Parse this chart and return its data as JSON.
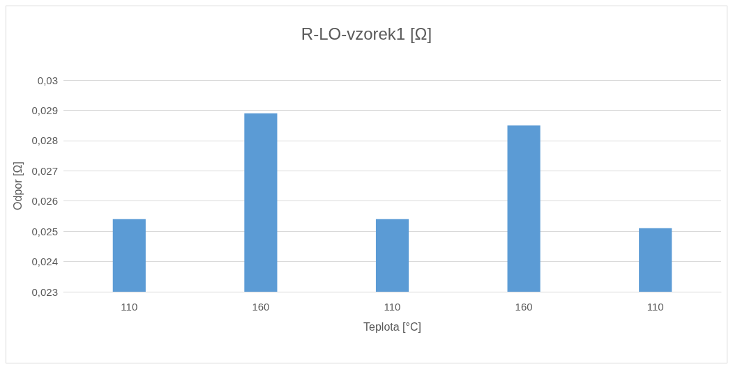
{
  "chart_data": {
    "type": "bar",
    "title": "R-LO-vzorek1 [Ω]",
    "xlabel": "Teplota [°C]",
    "ylabel": "Odpor [Ω]",
    "categories": [
      "110",
      "160",
      "110",
      "160",
      "110"
    ],
    "values": [
      0.0254,
      0.0289,
      0.0254,
      0.0285,
      0.0251
    ],
    "color": "#5b9bd5",
    "ylim": [
      0.023,
      0.03
    ],
    "yticks": [
      {
        "value": 0.023,
        "label": "0,023"
      },
      {
        "value": 0.024,
        "label": "0,024"
      },
      {
        "value": 0.025,
        "label": "0,025"
      },
      {
        "value": 0.026,
        "label": "0,026"
      },
      {
        "value": 0.027,
        "label": "0,027"
      },
      {
        "value": 0.028,
        "label": "0,028"
      },
      {
        "value": 0.029,
        "label": "0,029"
      },
      {
        "value": 0.03,
        "label": "0,03"
      }
    ],
    "grid": "y"
  }
}
